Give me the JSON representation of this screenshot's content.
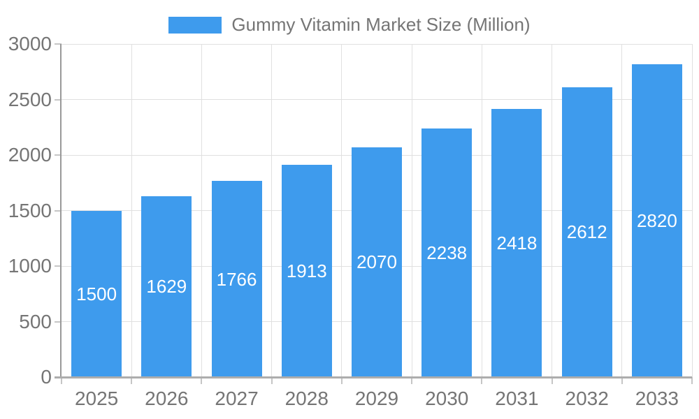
{
  "chart_data": {
    "type": "bar",
    "title": "Gummy Vitamin Market Size (Million)",
    "categories": [
      "2025",
      "2026",
      "2027",
      "2028",
      "2029",
      "2030",
      "2031",
      "2032",
      "2033"
    ],
    "values": [
      1500,
      1629,
      1766,
      1913,
      2070,
      2238,
      2418,
      2612,
      2820
    ],
    "xlabel": "",
    "ylabel": "",
    "ylim": [
      0,
      3000
    ],
    "yticks": [
      0,
      500,
      1000,
      1500,
      2000,
      2500,
      3000
    ],
    "grid": true,
    "legend_position": "top",
    "value_label_position": "inside-center"
  },
  "legend": {
    "label": "Gummy Vitamin Market Size (Million)"
  },
  "colors": {
    "bar": "#3E9BED",
    "value_label": "#FFFFFF",
    "axis_text": "#757575",
    "grid_line": "#E0E0E0",
    "y_axis_line": "#999999",
    "x_axis_line": "#ADADAD",
    "tick": "#C6C6C6",
    "background": "#FFFFFF"
  }
}
